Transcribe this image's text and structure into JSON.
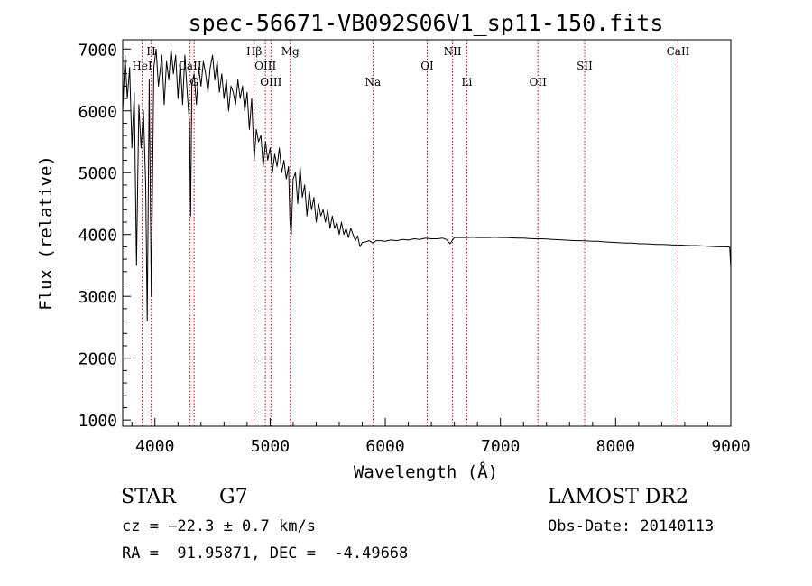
{
  "chart_data": {
    "type": "line",
    "title": "spec-56671-VB092S06V1_sp11-150.fits",
    "xlabel": "Wavelength (Å)",
    "ylabel": "Flux (relative)",
    "xlim": [
      3720,
      9000
    ],
    "ylim": [
      900,
      7150
    ],
    "xticks": [
      4000,
      5000,
      6000,
      7000,
      8000,
      9000
    ],
    "yticks": [
      1000,
      2000,
      3000,
      4000,
      5000,
      6000,
      7000
    ],
    "grid": false,
    "legend": "none",
    "line_color": "#000000",
    "marker_color": "#cc0000",
    "series": [
      {
        "x": [
          3720,
          3740,
          3760,
          3780,
          3800,
          3820,
          3840,
          3860,
          3880,
          3900,
          3920,
          3933,
          3950,
          3968,
          3990,
          4010,
          4030,
          4060,
          4080,
          4101,
          4120,
          4140,
          4160,
          4180,
          4200,
          4220,
          4240,
          4260,
          4280,
          4300,
          4310,
          4320,
          4340,
          4360,
          4380,
          4400,
          4420,
          4440,
          4460,
          4480,
          4500,
          4520,
          4540,
          4560,
          4580,
          4600,
          4620,
          4640,
          4660,
          4680,
          4700,
          4720,
          4740,
          4760,
          4780,
          4800,
          4820,
          4840,
          4861,
          4880,
          4900,
          4920,
          4940,
          4960,
          4980,
          5000,
          5020,
          5040,
          5060,
          5080,
          5100,
          5120,
          5140,
          5160,
          5172,
          5183,
          5200,
          5220,
          5240,
          5260,
          5280,
          5300,
          5320,
          5340,
          5360,
          5380,
          5400,
          5420,
          5440,
          5460,
          5480,
          5500,
          5520,
          5540,
          5560,
          5580,
          5600,
          5620,
          5640,
          5660,
          5680,
          5700,
          5720,
          5740,
          5760,
          5780,
          5800,
          5830,
          5860,
          5893,
          5920,
          5960,
          6000,
          6050,
          6100,
          6150,
          6200,
          6250,
          6300,
          6350,
          6400,
          6450,
          6500,
          6530,
          6563,
          6600,
          6650,
          6700,
          6750,
          6800,
          6850,
          6900,
          6950,
          7000,
          7050,
          7100,
          7150,
          7200,
          7250,
          7300,
          7350,
          7400,
          7450,
          7500,
          7550,
          7600,
          7650,
          7700,
          7750,
          7800,
          7850,
          7900,
          7950,
          8000,
          8050,
          8100,
          8150,
          8200,
          8250,
          8300,
          8350,
          8400,
          8450,
          8500,
          8550,
          8600,
          8650,
          8700,
          8750,
          8800,
          8850,
          8900,
          8950,
          8990,
          9000
        ],
        "values": [
          6000,
          6900,
          6200,
          6700,
          5400,
          6300,
          3500,
          6100,
          5400,
          6000,
          4800,
          2600,
          6500,
          3000,
          6700,
          7000,
          6400,
          6900,
          6100,
          6800,
          6500,
          7000,
          6600,
          6900,
          6200,
          6800,
          6100,
          6900,
          6300,
          5800,
          4300,
          6400,
          6600,
          6100,
          6700,
          6400,
          6800,
          6600,
          6300,
          6700,
          6900,
          6500,
          6800,
          6300,
          6600,
          6200,
          6500,
          6000,
          6400,
          6300,
          6100,
          6500,
          6200,
          6400,
          6000,
          6300,
          5700,
          6200,
          5200,
          5700,
          5500,
          5600,
          5100,
          5500,
          5200,
          5400,
          5000,
          5300,
          5100,
          5400,
          5000,
          5200,
          4900,
          5100,
          4200,
          4000,
          4900,
          5000,
          4500,
          5100,
          4600,
          4800,
          4300,
          4700,
          4400,
          4600,
          4200,
          4500,
          4300,
          4400,
          4200,
          4400,
          4100,
          4300,
          4100,
          4200,
          4000,
          4200,
          4000,
          4100,
          3950,
          4100,
          4000,
          3900,
          3980,
          3800,
          3870,
          3880,
          3900,
          3860,
          3900,
          3900,
          3890,
          3910,
          3900,
          3920,
          3910,
          3930,
          3920,
          3940,
          3930,
          3930,
          3940,
          3920,
          3850,
          3950,
          3950,
          3950,
          3955,
          3950,
          3950,
          3950,
          3955,
          3950,
          3950,
          3945,
          3940,
          3940,
          3935,
          3930,
          3930,
          3925,
          3920,
          3915,
          3910,
          3905,
          3900,
          3900,
          3895,
          3890,
          3890,
          3880,
          3875,
          3870,
          3865,
          3860,
          3860,
          3850,
          3850,
          3845,
          3840,
          3840,
          3835,
          3830,
          3830,
          3825,
          3820,
          3820,
          3815,
          3810,
          3805,
          3800,
          3800,
          3795,
          3450
        ]
      }
    ],
    "lines": [
      {
        "name": "HeI",
        "x": 3889,
        "tier": 1
      },
      {
        "name": "H",
        "x": 3968,
        "tier": 0
      },
      {
        "name": "CaII",
        "x": 4305,
        "tier": 1
      },
      {
        "name": "G",
        "x": 4340,
        "tier": 2
      },
      {
        "name": "Hβ",
        "x": 4861,
        "tier": 0
      },
      {
        "name": "OIII",
        "x": 4959,
        "tier": 1
      },
      {
        "name": "OIII",
        "x": 5007,
        "tier": 2
      },
      {
        "name": "Mg",
        "x": 5175,
        "tier": 0
      },
      {
        "name": "Na",
        "x": 5893,
        "tier": 2
      },
      {
        "name": "OI",
        "x": 6364,
        "tier": 1
      },
      {
        "name": "NII",
        "x": 6584,
        "tier": 0
      },
      {
        "name": "Li",
        "x": 6708,
        "tier": 2
      },
      {
        "name": "OII",
        "x": 7325,
        "tier": 2
      },
      {
        "name": "SII",
        "x": 7731,
        "tier": 1
      },
      {
        "name": "CaII",
        "x": 8542,
        "tier": 0
      }
    ]
  },
  "footer": {
    "object_type": "STAR",
    "subclass": "G7",
    "survey": "LAMOST DR2",
    "cz": "cz = −22.3 ± 0.7 km/s",
    "obs_date": "Obs-Date: 20140113",
    "coords": "RA =  91.95871, DEC =  -4.49668"
  }
}
